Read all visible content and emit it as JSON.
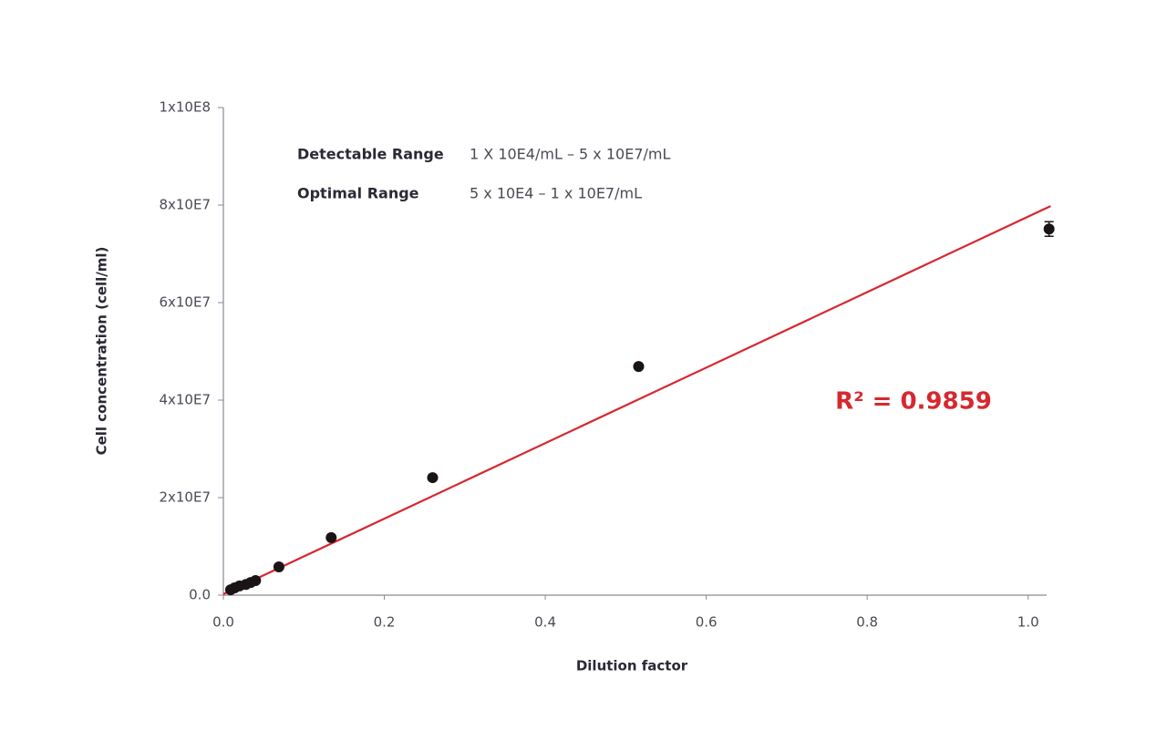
{
  "chart_data": {
    "type": "scatter",
    "x_label": "Dilution factor",
    "y_label": "Cell concentration (cell/ml)",
    "annotations": {
      "detectable_label": "Detectable Range",
      "detectable_value": "1 X 10E4/mL – 5 x 10E7/mL",
      "optimal_label": "Optimal Range",
      "optimal_value": "5 x 10E4 – 1 x 10E7/mL",
      "r_squared": "R² = 0.9859"
    },
    "xlim": [
      0,
      1.023
    ],
    "ylim": [
      0,
      100000000
    ],
    "xticks": [
      {
        "value": 0,
        "label": "0.0"
      },
      0.2,
      0.4,
      0.6,
      0.8,
      {
        "value": 1,
        "label": "1.0"
      }
    ],
    "yticks": [
      {
        "value": 0,
        "label": "0.0"
      },
      {
        "value": 20000000,
        "label": "2x10E7"
      },
      {
        "value": 40000000,
        "label": "4x10E7"
      },
      {
        "value": 60000000,
        "label": "6x10E7"
      },
      {
        "value": 80000000,
        "label": "8x10E7"
      },
      {
        "value": 100000000,
        "label": "1x10E8"
      }
    ],
    "color": "#1a1416",
    "x": [
      1.026,
      0.516,
      0.26,
      0.134,
      0.069,
      0.04,
      0.034,
      0.028,
      0.02,
      0.014,
      0.009
    ],
    "values": [
      75100000,
      46900000,
      24100000,
      11800000,
      5800000,
      3000000,
      2600000,
      2200000,
      1900000,
      1500000,
      1100000
    ],
    "errors": [
      1500000,
      null,
      null,
      null,
      null,
      null,
      null,
      null,
      null,
      null,
      null
    ],
    "fit_line": {
      "color": "#d7282f",
      "x": [
        0,
        1.028
      ],
      "values": [
        200000,
        79800000
      ]
    }
  }
}
